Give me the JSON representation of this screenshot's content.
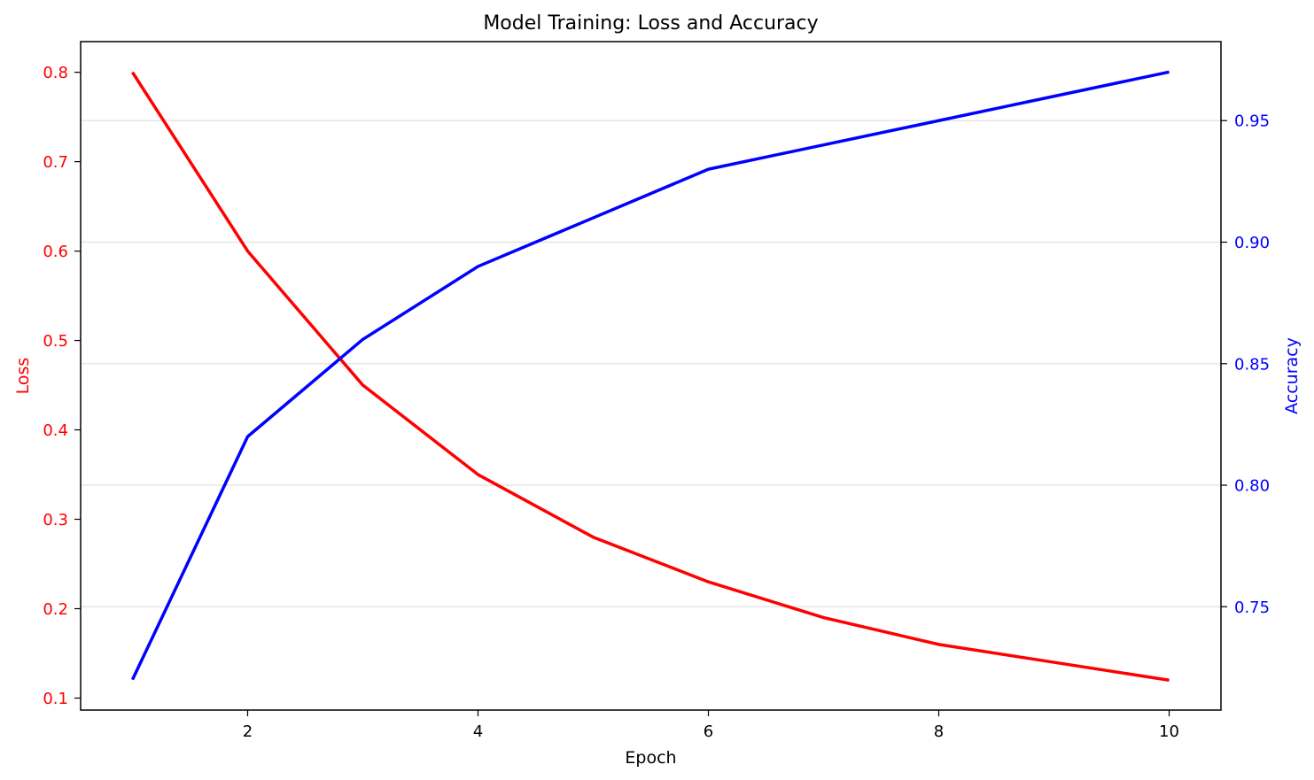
{
  "chart_data": {
    "type": "line",
    "title": "Model Training: Loss and Accuracy",
    "xlabel": "Epoch",
    "ylabel_left": "Loss",
    "ylabel_right": "Accuracy",
    "x": [
      1,
      2,
      3,
      4,
      5,
      6,
      7,
      8,
      9,
      10
    ],
    "series": [
      {
        "name": "Loss",
        "axis": "left",
        "color": "#ff0000",
        "values": [
          0.8,
          0.6,
          0.45,
          0.35,
          0.28,
          0.23,
          0.19,
          0.16,
          0.14,
          0.12
        ]
      },
      {
        "name": "Accuracy",
        "axis": "right",
        "color": "#0000ff",
        "values": [
          0.72,
          0.82,
          0.86,
          0.89,
          0.91,
          0.93,
          0.94,
          0.95,
          0.96,
          0.97
        ]
      }
    ],
    "xlim": [
      0.55,
      10.45
    ],
    "ylim_left": [
      0.0866,
      0.8343
    ],
    "ylim_right": [
      0.7075,
      0.9825
    ],
    "xticks": [
      2,
      4,
      6,
      8,
      10
    ],
    "xtick_labels": [
      "2",
      "4",
      "6",
      "8",
      "10"
    ],
    "yticks_left": [
      0.1,
      0.2,
      0.3,
      0.4,
      0.5,
      0.6,
      0.7,
      0.8
    ],
    "ytick_labels_left": [
      "0.1",
      "0.2",
      "0.3",
      "0.4",
      "0.5",
      "0.6",
      "0.7",
      "0.8"
    ],
    "yticks_right": [
      0.75,
      0.8,
      0.85,
      0.9,
      0.95
    ],
    "ytick_labels_right": [
      "0.75",
      "0.80",
      "0.85",
      "0.90",
      "0.95"
    ],
    "grid": "horizontal, right axis",
    "legend": "none"
  }
}
